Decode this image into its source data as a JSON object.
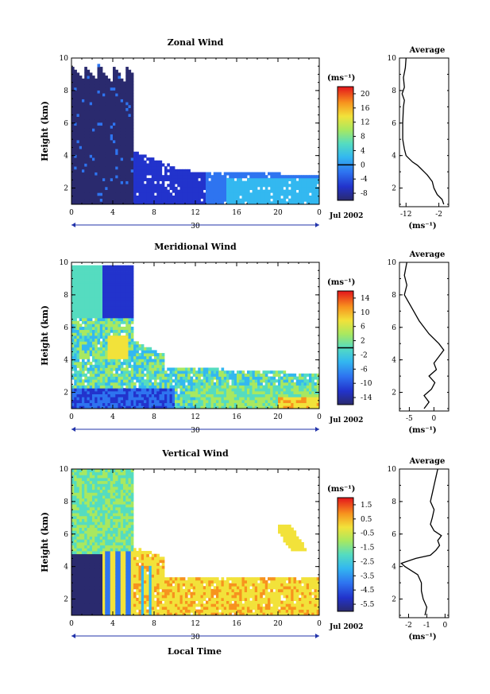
{
  "figure": {
    "x_axis_title": "Local Time",
    "date_label": "Jul 2002",
    "day_label": "30",
    "profile_title": "Average",
    "unit_label": "(ms⁻¹)"
  },
  "chart_data": [
    {
      "type": "heatmap",
      "id": "zonal",
      "title": "Zonal Wind",
      "xlabel": "",
      "ylabel": "Height (km)",
      "x_ticks": [
        "0",
        "4",
        "8",
        "12",
        "16",
        "20",
        "0"
      ],
      "xlim": [
        0,
        24
      ],
      "ylim": [
        1,
        10
      ],
      "y_ticks": [
        2,
        4,
        6,
        8,
        10
      ],
      "colorbar": {
        "unit": "(ms⁻¹)",
        "ticks": [
          "20",
          "16",
          "12",
          "8",
          "4",
          "0",
          "-4",
          "-8"
        ],
        "range": [
          -10,
          22
        ],
        "zero_line": 0
      },
      "profile": {
        "title": "Average",
        "x_ticks": [
          "-12",
          "-2"
        ],
        "xlim": [
          -14,
          1
        ],
        "xlabel": "(ms⁻¹)",
        "y_ticks": [
          "2",
          "4",
          "6",
          "8",
          "10"
        ],
        "points": [
          [
            -0.5,
            1.0
          ],
          [
            -1.0,
            1.3
          ],
          [
            -2.5,
            1.6
          ],
          [
            -3.5,
            2.0
          ],
          [
            -4.0,
            2.4
          ],
          [
            -5.5,
            2.8
          ],
          [
            -6.5,
            3.0
          ],
          [
            -7.5,
            3.2
          ],
          [
            -8.5,
            3.4
          ],
          [
            -10.0,
            3.6
          ],
          [
            -11.0,
            3.8
          ],
          [
            -12.0,
            4.0
          ],
          [
            -12.5,
            4.4
          ],
          [
            -13.0,
            5.0
          ],
          [
            -13.0,
            6.0
          ],
          [
            -12.8,
            7.0
          ],
          [
            -12.5,
            7.4
          ],
          [
            -13.2,
            7.8
          ],
          [
            -12.5,
            8.2
          ],
          [
            -12.8,
            8.8
          ],
          [
            -12.2,
            9.4
          ],
          [
            -12.0,
            10.0
          ]
        ]
      }
    },
    {
      "type": "heatmap",
      "id": "meridional",
      "title": "Meridional Wind",
      "xlabel": "",
      "ylabel": "Height (km)",
      "x_ticks": [
        "0",
        "4",
        "8",
        "12",
        "16",
        "20",
        "0"
      ],
      "xlim": [
        0,
        24
      ],
      "ylim": [
        1,
        10
      ],
      "y_ticks": [
        2,
        4,
        6,
        8,
        10
      ],
      "colorbar": {
        "unit": "(ms⁻¹)",
        "ticks": [
          "14",
          "10",
          "6",
          "2",
          "-2",
          "-6",
          "-10",
          "-14"
        ],
        "range": [
          -16,
          16
        ],
        "zero_line": 0
      },
      "profile": {
        "title": "Average",
        "x_ticks": [
          "-5",
          "0"
        ],
        "xlim": [
          -7,
          3
        ],
        "xlabel": "(ms⁻¹)",
        "y_ticks": [
          "2",
          "4",
          "6",
          "8",
          "10"
        ],
        "points": [
          [
            -2.0,
            1.0
          ],
          [
            -1.0,
            1.4
          ],
          [
            -2.0,
            1.8
          ],
          [
            -0.5,
            2.2
          ],
          [
            0.2,
            2.6
          ],
          [
            -1.0,
            3.0
          ],
          [
            0.5,
            3.4
          ],
          [
            0.0,
            3.8
          ],
          [
            1.0,
            4.2
          ],
          [
            2.0,
            4.6
          ],
          [
            1.0,
            5.0
          ],
          [
            -1.0,
            5.6
          ],
          [
            -3.0,
            6.4
          ],
          [
            -4.5,
            7.2
          ],
          [
            -6.0,
            8.0
          ],
          [
            -5.5,
            8.6
          ],
          [
            -6.0,
            9.2
          ],
          [
            -5.5,
            10.0
          ]
        ]
      }
    },
    {
      "type": "heatmap",
      "id": "vertical",
      "title": "Vertical Wind",
      "xlabel": "Local Time",
      "ylabel": "Height (km)",
      "x_ticks": [
        "0",
        "4",
        "8",
        "12",
        "16",
        "20",
        "0"
      ],
      "xlim": [
        0,
        24
      ],
      "ylim": [
        1,
        10
      ],
      "y_ticks": [
        2,
        4,
        6,
        8,
        10
      ],
      "colorbar": {
        "unit": "(ms⁻¹)",
        "ticks": [
          "1.5",
          "0.5",
          "-0.5",
          "-1.5",
          "-2.5",
          "-3.5",
          "-4.5",
          "-5.5"
        ],
        "range": [
          -6,
          2
        ],
        "zero_line": null
      },
      "profile": {
        "title": "Average",
        "x_ticks": [
          "-2",
          "-1",
          "0"
        ],
        "xlim": [
          -2.5,
          0.2
        ],
        "xlabel": "(ms⁻¹)",
        "y_ticks": [
          "2",
          "4",
          "6",
          "8",
          "10"
        ],
        "points": [
          [
            -1.1,
            1.0
          ],
          [
            -1.0,
            1.5
          ],
          [
            -1.2,
            2.0
          ],
          [
            -1.3,
            2.5
          ],
          [
            -1.3,
            3.0
          ],
          [
            -1.5,
            3.5
          ],
          [
            -2.2,
            4.0
          ],
          [
            -2.4,
            4.2
          ],
          [
            -1.6,
            4.5
          ],
          [
            -0.8,
            4.7
          ],
          [
            -0.5,
            5.0
          ],
          [
            -0.3,
            5.3
          ],
          [
            -0.4,
            5.6
          ],
          [
            -0.2,
            5.9
          ],
          [
            -0.6,
            6.2
          ],
          [
            -0.8,
            6.6
          ],
          [
            -0.7,
            7.0
          ],
          [
            -0.6,
            7.5
          ],
          [
            -0.8,
            8.0
          ],
          [
            -0.7,
            8.5
          ],
          [
            -0.6,
            9.0
          ],
          [
            -0.5,
            9.5
          ],
          [
            -0.4,
            10.0
          ]
        ]
      }
    }
  ]
}
